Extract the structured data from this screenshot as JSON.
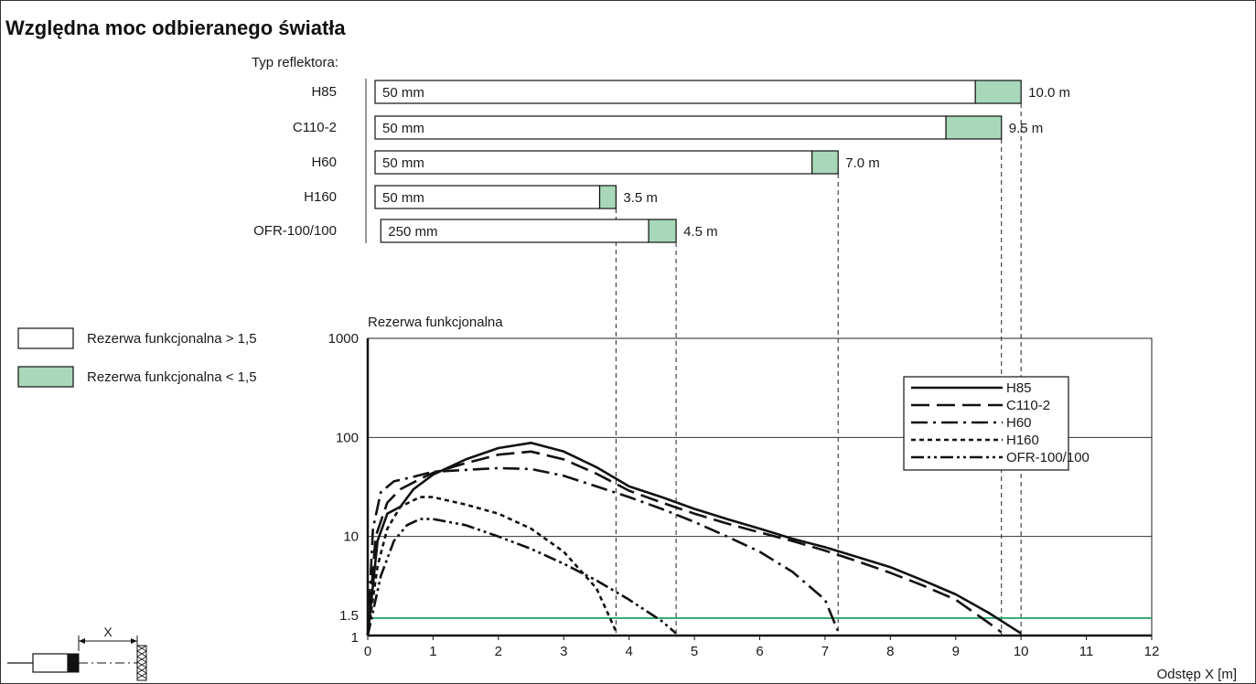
{
  "title": "Względna moc odbieranego światła",
  "colors": {
    "green_fill": "#a8d8b9",
    "threshold_line": "#2ca66b",
    "stroke": "#111111"
  },
  "range_panel": {
    "heading": "Typ reflektora:",
    "items": [
      {
        "name": "H85",
        "label": "50 mm",
        "start": 0,
        "reserve_from": 9.3,
        "end": 10.0,
        "end_label": "10.0 m"
      },
      {
        "name": "C110-2",
        "label": "50 mm",
        "start": 0,
        "reserve_from": 8.85,
        "end": 9.7,
        "end_label": "9.5 m"
      },
      {
        "name": "H60",
        "label": "50 mm",
        "start": 0,
        "reserve_from": 6.8,
        "end": 7.2,
        "end_label": "7.0 m"
      },
      {
        "name": "H160",
        "label": "50 mm",
        "start": 0,
        "reserve_from": 3.55,
        "end": 3.8,
        "end_label": "3.5 m"
      },
      {
        "name": "OFR-100/100",
        "label": "250 mm",
        "start": 0.2,
        "reserve_from": 4.3,
        "end": 4.72,
        "end_label": "4.5 m"
      }
    ]
  },
  "legend_boxes": [
    {
      "label": "Rezerwa funkcjonalna > 1,5",
      "fill": "#ffffff"
    },
    {
      "label": "Rezerwa funkcjonalna < 1,5",
      "fill": "#a8d8b9"
    }
  ],
  "chart_data": {
    "type": "line",
    "ylabel": "Rezerwa funkcjonalna",
    "xlabel": "Odstęp X [m]",
    "xlim": [
      0,
      12
    ],
    "ylim": [
      1,
      1000
    ],
    "yscale": "log",
    "x_ticks": [
      0,
      1,
      2,
      3,
      4,
      5,
      6,
      7,
      8,
      9,
      10,
      11,
      12
    ],
    "y_ticks": [
      {
        "value": 1,
        "label": "1"
      },
      {
        "value": 1.5,
        "label": "1.5"
      },
      {
        "value": 10,
        "label": "10"
      },
      {
        "value": 100,
        "label": "100"
      },
      {
        "value": 1000,
        "label": "1000"
      }
    ],
    "threshold": 1.5,
    "grid": true,
    "legend_position": "top-right",
    "series": [
      {
        "name": "H85",
        "dash": "",
        "points": [
          [
            0,
            1
          ],
          [
            0.15,
            9
          ],
          [
            0.3,
            17
          ],
          [
            0.5,
            20
          ],
          [
            0.7,
            30
          ],
          [
            1,
            42
          ],
          [
            1.5,
            60
          ],
          [
            2,
            78
          ],
          [
            2.5,
            88
          ],
          [
            3,
            72
          ],
          [
            3.5,
            50
          ],
          [
            4,
            32
          ],
          [
            4.5,
            25
          ],
          [
            5,
            19
          ],
          [
            5.5,
            15
          ],
          [
            6,
            12
          ],
          [
            6.5,
            9.5
          ],
          [
            7,
            7.8
          ],
          [
            7.5,
            6.2
          ],
          [
            8,
            4.9
          ],
          [
            8.5,
            3.6
          ],
          [
            9,
            2.6
          ],
          [
            9.5,
            1.7
          ],
          [
            10,
            1.05
          ]
        ]
      },
      {
        "name": "C110-2",
        "dash": "20,8",
        "points": [
          [
            0,
            1
          ],
          [
            0.12,
            10
          ],
          [
            0.3,
            22
          ],
          [
            0.5,
            30
          ],
          [
            0.8,
            38
          ],
          [
            1,
            44
          ],
          [
            1.5,
            55
          ],
          [
            2,
            67
          ],
          [
            2.5,
            72
          ],
          [
            3,
            60
          ],
          [
            3.5,
            43
          ],
          [
            4,
            29
          ],
          [
            4.5,
            22
          ],
          [
            5,
            17
          ],
          [
            5.5,
            13.5
          ],
          [
            6,
            11
          ],
          [
            6.5,
            9
          ],
          [
            7,
            7.2
          ],
          [
            7.5,
            5.6
          ],
          [
            8,
            4.3
          ],
          [
            8.5,
            3.2
          ],
          [
            9,
            2.3
          ],
          [
            9.5,
            1.35
          ],
          [
            9.7,
            1.08
          ]
        ]
      },
      {
        "name": "H60",
        "dash": "18,6,3,6",
        "points": [
          [
            0,
            1
          ],
          [
            0.08,
            12
          ],
          [
            0.2,
            28
          ],
          [
            0.4,
            36
          ],
          [
            0.7,
            40
          ],
          [
            1,
            45
          ],
          [
            1.5,
            47
          ],
          [
            2,
            49
          ],
          [
            2.5,
            48
          ],
          [
            3,
            41
          ],
          [
            3.5,
            32
          ],
          [
            4,
            25
          ],
          [
            4.5,
            19
          ],
          [
            5,
            14
          ],
          [
            5.5,
            10
          ],
          [
            6,
            7
          ],
          [
            6.5,
            4.4
          ],
          [
            7,
            2.3
          ],
          [
            7.2,
            1.1
          ]
        ]
      },
      {
        "name": "H160",
        "dash": "5,4",
        "points": [
          [
            0,
            1
          ],
          [
            0.15,
            5
          ],
          [
            0.3,
            12
          ],
          [
            0.5,
            20
          ],
          [
            0.8,
            25
          ],
          [
            1,
            25
          ],
          [
            1.5,
            21
          ],
          [
            2,
            17
          ],
          [
            2.5,
            12
          ],
          [
            3,
            7
          ],
          [
            3.5,
            3
          ],
          [
            3.8,
            1.1
          ]
        ]
      },
      {
        "name": "OFR-100/100",
        "dash": "14,4,3,4,3,4",
        "points": [
          [
            0,
            1
          ],
          [
            0.2,
            4
          ],
          [
            0.4,
            9
          ],
          [
            0.6,
            13
          ],
          [
            0.8,
            15
          ],
          [
            1,
            15
          ],
          [
            1.5,
            13
          ],
          [
            2,
            10
          ],
          [
            2.5,
            7.5
          ],
          [
            3,
            5.3
          ],
          [
            3.5,
            3.6
          ],
          [
            4,
            2.3
          ],
          [
            4.5,
            1.4
          ],
          [
            4.72,
            1.05
          ]
        ]
      }
    ]
  }
}
